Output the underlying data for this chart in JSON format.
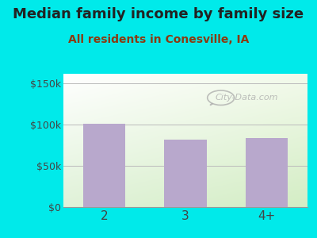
{
  "title": "Median family income by family size",
  "subtitle": "All residents in Conesville, IA",
  "categories": [
    "2",
    "3",
    "4+"
  ],
  "values": [
    101000,
    82000,
    84000
  ],
  "bar_color": "#b8a8cc",
  "outer_bg": "#00eaea",
  "title_color": "#222222",
  "subtitle_color": "#8b3a10",
  "axis_label_color": "#444444",
  "yticks": [
    0,
    50000,
    100000,
    150000
  ],
  "ytick_labels": [
    "$0",
    "$50k",
    "$100k",
    "$150k"
  ],
  "ylim": [
    0,
    162000
  ],
  "watermark": "City-Data.com",
  "title_fontsize": 13,
  "subtitle_fontsize": 10,
  "tick_fontsize": 9,
  "xtick_fontsize": 11
}
